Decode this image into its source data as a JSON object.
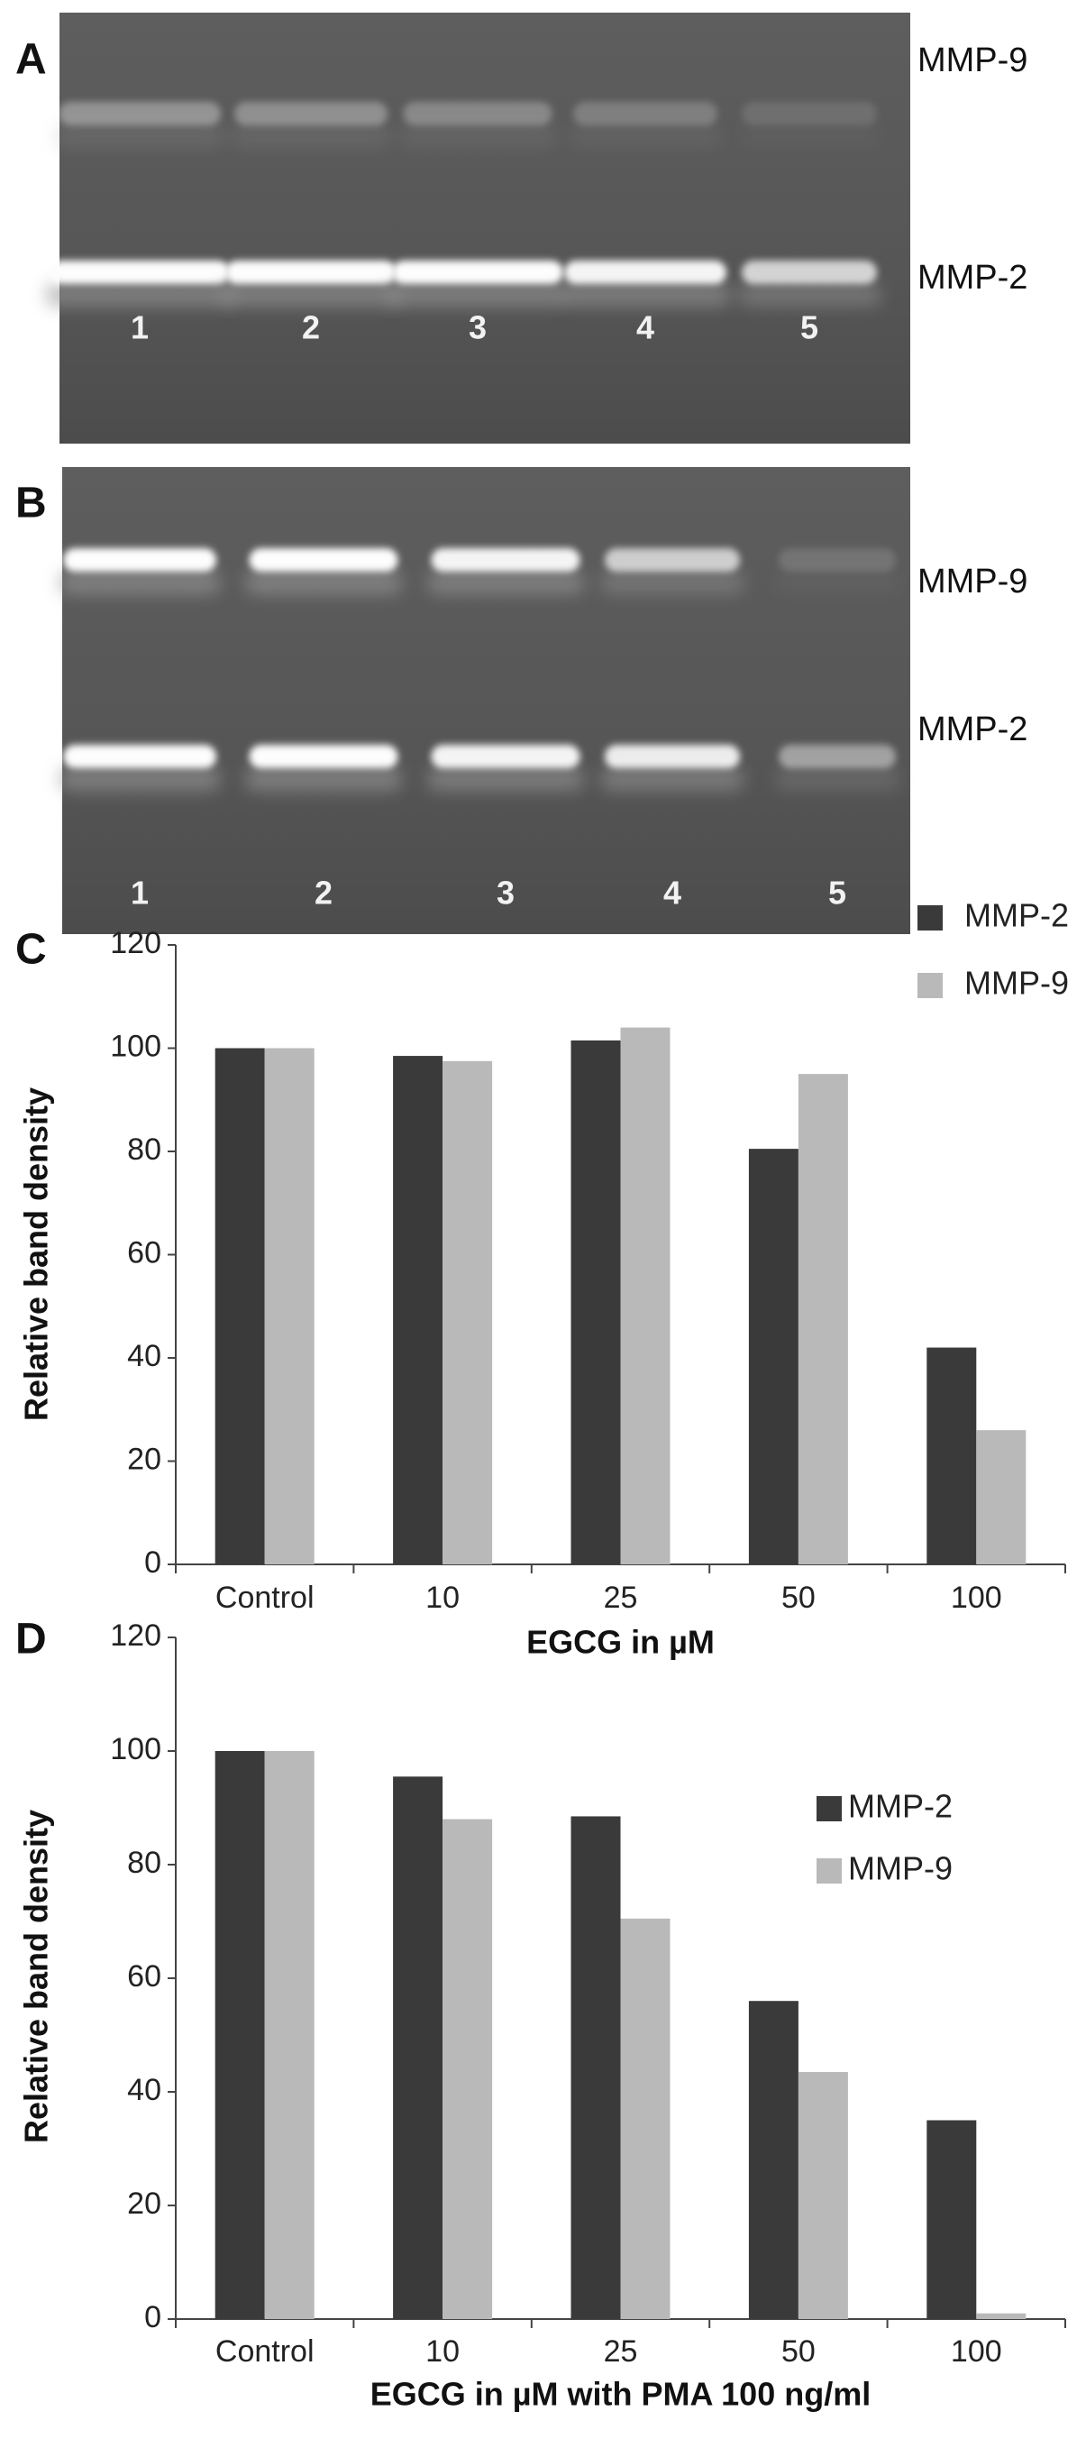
{
  "gels": [
    {
      "panel": "A",
      "band_labels": [
        "MMP-9",
        "MMP-2"
      ],
      "lanes": [
        "1",
        "2",
        "3",
        "4",
        "5"
      ]
    },
    {
      "panel": "B",
      "band_labels": [
        "MMP-9",
        "MMP-2"
      ],
      "lanes": [
        "1",
        "2",
        "3",
        "4",
        "5"
      ]
    }
  ],
  "chart_data": [
    {
      "type": "bar",
      "panel": "C",
      "y_label": "Relative band density",
      "x_label": "EGCG in µM",
      "categories": [
        "Control",
        "10",
        "25",
        "50",
        "100"
      ],
      "series": [
        {
          "name": "MMP-2",
          "color": "#3a3a3a",
          "values": [
            100,
            98.5,
            101.5,
            80.5,
            42
          ]
        },
        {
          "name": "MMP-9",
          "color": "#b9b9b9",
          "values": [
            100,
            97.5,
            104,
            95,
            26
          ]
        }
      ],
      "ylim": [
        0,
        120
      ],
      "yticks": [
        0,
        20,
        40,
        60,
        80,
        100,
        120
      ],
      "legend": "top-right"
    },
    {
      "type": "bar",
      "panel": "D",
      "y_label": "Relative band density",
      "x_label": "EGCG in µM with PMA 100 ng/ml",
      "categories": [
        "Control",
        "10",
        "25",
        "50",
        "100"
      ],
      "series": [
        {
          "name": "MMP-2",
          "color": "#3a3a3a",
          "values": [
            100,
            95.5,
            88.5,
            56,
            35
          ]
        },
        {
          "name": "MMP-9",
          "color": "#b9b9b9",
          "values": [
            100,
            88,
            70.5,
            43.5,
            1
          ]
        }
      ],
      "ylim": [
        0,
        120
      ],
      "yticks": [
        0,
        20,
        40,
        60,
        80,
        100,
        120
      ],
      "legend": "top-right"
    }
  ]
}
